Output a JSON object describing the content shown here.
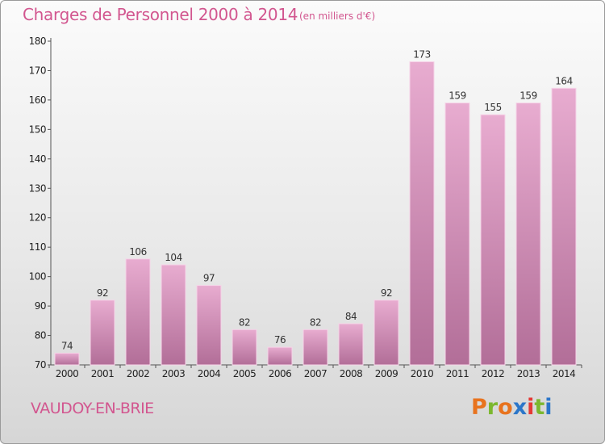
{
  "header": {
    "title": "Charges de Personnel 2000 à 2014",
    "unit": "(en milliers d'€)"
  },
  "footer": {
    "commune": "VAUDOY-EN-BRIE",
    "logo": "Proxiti",
    "logo_colors": [
      "#e8731e",
      "#7cb82f",
      "#e8731e",
      "#2b76c9",
      "#e53935",
      "#7cb82f",
      "#2b76c9"
    ]
  },
  "colors": {
    "bar_top": "#e8acd0",
    "bar_bottom": "#b26e98",
    "bar_edge": "#f6d4e8",
    "accent": "#d2568f"
  },
  "chart_data": {
    "type": "bar",
    "title": "Charges de Personnel 2000 à 2014",
    "subtitle": "(en milliers d'€)",
    "xlabel": "",
    "ylabel": "",
    "categories": [
      "2000",
      "2001",
      "2002",
      "2003",
      "2004",
      "2005",
      "2006",
      "2007",
      "2008",
      "2009",
      "2010",
      "2011",
      "2012",
      "2013",
      "2014"
    ],
    "values": [
      74,
      92,
      106,
      104,
      97,
      82,
      76,
      82,
      84,
      92,
      173,
      159,
      155,
      159,
      164
    ],
    "ylim": [
      70,
      180
    ],
    "yticks": [
      70,
      80,
      90,
      100,
      110,
      120,
      130,
      140,
      150,
      160,
      170,
      180
    ],
    "data_labels": true,
    "grid": false,
    "legend": "none"
  }
}
